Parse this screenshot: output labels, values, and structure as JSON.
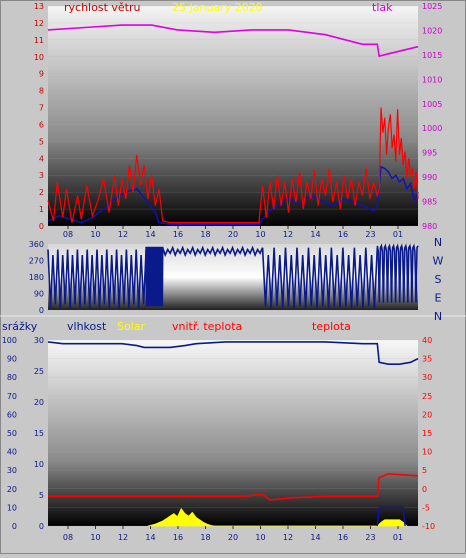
{
  "date_label": "25 January 2020",
  "colors": {
    "wind_speed": "#ff0000",
    "wind_avg": "#1010c0",
    "pressure": "#e000e0",
    "wind_dir": "#0a1a8a",
    "humidity": "#0a1a8a",
    "solar": "#ffff00",
    "temp": "#ff0000",
    "date": "#ffff00",
    "axis_left": "#cc0000",
    "axis_right": "#cc00cc",
    "axis_temp": "#ff0000",
    "compass": "#0a1a8a"
  },
  "chart_data": [
    {
      "id": "wind_pressure",
      "type": "line",
      "x_ticks": [
        "08",
        "10",
        "12",
        "14",
        "16",
        "18",
        "20",
        "10",
        "12",
        "14",
        "16",
        "23",
        "01"
      ],
      "x_range": [
        0,
        100
      ],
      "y_left": {
        "label": "rychlost větru",
        "ticks": [
          "0",
          "1",
          "2",
          "3",
          "4",
          "5",
          "6",
          "7",
          "8",
          "9",
          "10",
          "11",
          "12",
          "13"
        ],
        "range": [
          0,
          13
        ]
      },
      "y_right": {
        "label": "tlak",
        "ticks": [
          "980",
          "985",
          "990",
          "995",
          "1000",
          "1005",
          "1010",
          "1015",
          "1020",
          "1025"
        ],
        "range": [
          980,
          1026
        ]
      },
      "series": [
        {
          "key": "pressure",
          "x": [
            0,
            10,
            20,
            28,
            35,
            45,
            55,
            65,
            75,
            85,
            89,
            89.5,
            92,
            100
          ],
          "y": [
            1021,
            1021.5,
            1022,
            1022,
            1021,
            1020.5,
            1021,
            1021,
            1020,
            1018,
            1018,
            1015.5,
            1016,
            1017.5
          ]
        },
        {
          "key": "wind_avg",
          "x": [
            0,
            3,
            6,
            9,
            12,
            15,
            18,
            21,
            24,
            27,
            29,
            30,
            33,
            36,
            39,
            42,
            45,
            48,
            51,
            54,
            57,
            58,
            60,
            62,
            65,
            68,
            71,
            74,
            77,
            80,
            83,
            86,
            88,
            89,
            90,
            91,
            92,
            93,
            94,
            95,
            96,
            97,
            98,
            99,
            100
          ],
          "y": [
            0.3,
            0.6,
            0.4,
            0.2,
            0.5,
            1.0,
            1.6,
            2.0,
            2.2,
            1.4,
            0.8,
            0.2,
            0.1,
            0.1,
            0.1,
            0.1,
            0.1,
            0.1,
            0.1,
            0.1,
            0.1,
            0.4,
            0.9,
            1.2,
            1.6,
            1.3,
            1.8,
            1.5,
            1.2,
            1.6,
            1.4,
            1.1,
            0.9,
            1.2,
            3.5,
            3.4,
            3.2,
            2.8,
            3.0,
            2.6,
            2.8,
            2.2,
            2.5,
            1.5,
            2.0
          ]
        },
        {
          "key": "wind_speed",
          "x": [
            0,
            1.5,
            2.5,
            4,
            5,
            6.5,
            8,
            9,
            10.5,
            12,
            13.5,
            15,
            16.5,
            18,
            19,
            20,
            21,
            22,
            23,
            24,
            25,
            26,
            27,
            28,
            29,
            30,
            31,
            33,
            36,
            40,
            44,
            48,
            52,
            55,
            57,
            58,
            59,
            60,
            61,
            62,
            63,
            64,
            65,
            66,
            67,
            68,
            69,
            70,
            71,
            72,
            73,
            74,
            75,
            76,
            77,
            78,
            79,
            80,
            81,
            82,
            83,
            84,
            85,
            86,
            87,
            88,
            89,
            89.5,
            90,
            90.5,
            91,
            91.5,
            92,
            92.5,
            93,
            93.5,
            94,
            94.5,
            95,
            95.5,
            96,
            96.5,
            97,
            97.5,
            98,
            98.5,
            99,
            99.5,
            100
          ],
          "y": [
            1.5,
            0.3,
            2.6,
            0.5,
            2.2,
            0.2,
            1.8,
            0.4,
            2.4,
            0.6,
            1.5,
            2.8,
            0.8,
            3.0,
            1.2,
            2.8,
            1.6,
            3.6,
            2.0,
            4.2,
            2.4,
            3.6,
            1.6,
            3.0,
            1.2,
            2.2,
            0.3,
            0.2,
            0.2,
            0.2,
            0.2,
            0.2,
            0.2,
            0.2,
            0.2,
            2.4,
            0.5,
            2.6,
            1.0,
            3.0,
            1.2,
            2.6,
            0.8,
            2.8,
            1.4,
            3.2,
            1.0,
            2.6,
            1.6,
            3.3,
            1.2,
            2.8,
            1.8,
            3.4,
            1.4,
            2.6,
            1.0,
            3.0,
            1.6,
            2.8,
            1.2,
            2.6,
            1.8,
            3.4,
            1.6,
            2.6,
            1.8,
            2.2,
            7.0,
            5.5,
            6.4,
            4.2,
            5.8,
            6.6,
            4.6,
            5.4,
            3.8,
            6.9,
            4.2,
            5.2,
            3.6,
            4.4,
            2.8,
            4.0,
            3.0,
            3.4,
            2.2,
            3.2,
            1.6
          ]
        }
      ]
    },
    {
      "id": "wind_direction",
      "type": "line",
      "x_range": [
        0,
        100
      ],
      "y_left": {
        "ticks": [
          "0",
          "90",
          "180",
          "270",
          "360"
        ],
        "range": [
          0,
          360
        ]
      },
      "compass": [
        "N",
        "W",
        "S",
        "E",
        "N"
      ],
      "series": [
        {
          "key": "wind_dir",
          "segments": [
            {
              "x": [
                0,
                26.5
              ],
              "levels": [
                330,
                10,
                300,
                30
              ]
            },
            {
              "x": [
                26.5,
                31
              ],
              "levels": [
                345,
                20
              ]
            },
            {
              "x": [
                31,
                58
              ],
              "levels": [
                340,
                300,
                330,
                310
              ]
            },
            {
              "x": [
                58,
                89
              ],
              "levels": [
                340,
                20,
                300,
                10
              ]
            },
            {
              "x": [
                89,
                100
              ],
              "levels": [
                350,
                320,
                40,
                340
              ]
            }
          ]
        }
      ]
    },
    {
      "id": "humidity_temp_solar",
      "type": "line",
      "x_ticks": [
        "08",
        "10",
        "12",
        "14",
        "16",
        "18",
        "20",
        "10",
        "12",
        "14",
        "16",
        "23",
        "01"
      ],
      "x_range": [
        0,
        100
      ],
      "labels": [
        "srážky",
        "vlhkost",
        "Solar",
        "vnitř. teplota",
        "teplota"
      ],
      "y_left_1": {
        "label": "srážky",
        "ticks": [
          "0",
          "10",
          "20",
          "30",
          "40",
          "50",
          "60",
          "70",
          "80",
          "90",
          "100"
        ],
        "range": [
          0,
          100
        ]
      },
      "y_left_2": {
        "label": "vlhkost",
        "ticks": [
          "0",
          "5",
          "10",
          "15",
          "20",
          "25",
          "30"
        ],
        "range": [
          0,
          30
        ]
      },
      "y_right": {
        "label": "teplota",
        "ticks": [
          "-10",
          "-5",
          "0",
          "5",
          "10",
          "15",
          "20",
          "25",
          "30",
          "35",
          "40"
        ],
        "range": [
          -10,
          40
        ]
      },
      "series": [
        {
          "key": "humidity",
          "x": [
            0,
            4,
            6,
            20,
            24,
            26,
            33,
            37,
            40,
            48,
            58,
            65,
            75,
            85,
            89,
            89.5,
            92,
            95,
            98,
            100
          ],
          "y": [
            99,
            98,
            98,
            98,
            97,
            96,
            96,
            97,
            98,
            99,
            99,
            99,
            99,
            98,
            98,
            88,
            87,
            87,
            88,
            90
          ]
        },
        {
          "key": "temp",
          "x": [
            0,
            20,
            30,
            45,
            53,
            58,
            60,
            65,
            75,
            85,
            89,
            89.5,
            92,
            100
          ],
          "y": [
            -2,
            -2,
            -2,
            -2,
            -2,
            -1.5,
            -3,
            -2.5,
            -2,
            -2,
            -2,
            3,
            4,
            3.5
          ]
        },
        {
          "key": "solar",
          "x": [
            27,
            29,
            31,
            32,
            33,
            34,
            35,
            36,
            37,
            38,
            39,
            40,
            41,
            42,
            43,
            44,
            45,
            89,
            90,
            91,
            95,
            96,
            97
          ],
          "y": [
            0,
            0.3,
            0.8,
            1.2,
            1.6,
            2.0,
            1.5,
            2.8,
            2.0,
            1.6,
            2.2,
            1.4,
            1.0,
            0.6,
            0.3,
            0.1,
            0,
            0,
            0.6,
            1.0,
            1.0,
            0.6,
            0
          ]
        },
        {
          "key": "wind_avg",
          "x": [
            89,
            89.5,
            91,
            93,
            95,
            96,
            96.5
          ],
          "y": [
            0,
            3.0,
            3.0,
            3.0,
            3.0,
            3.0,
            0
          ]
        }
      ]
    }
  ]
}
